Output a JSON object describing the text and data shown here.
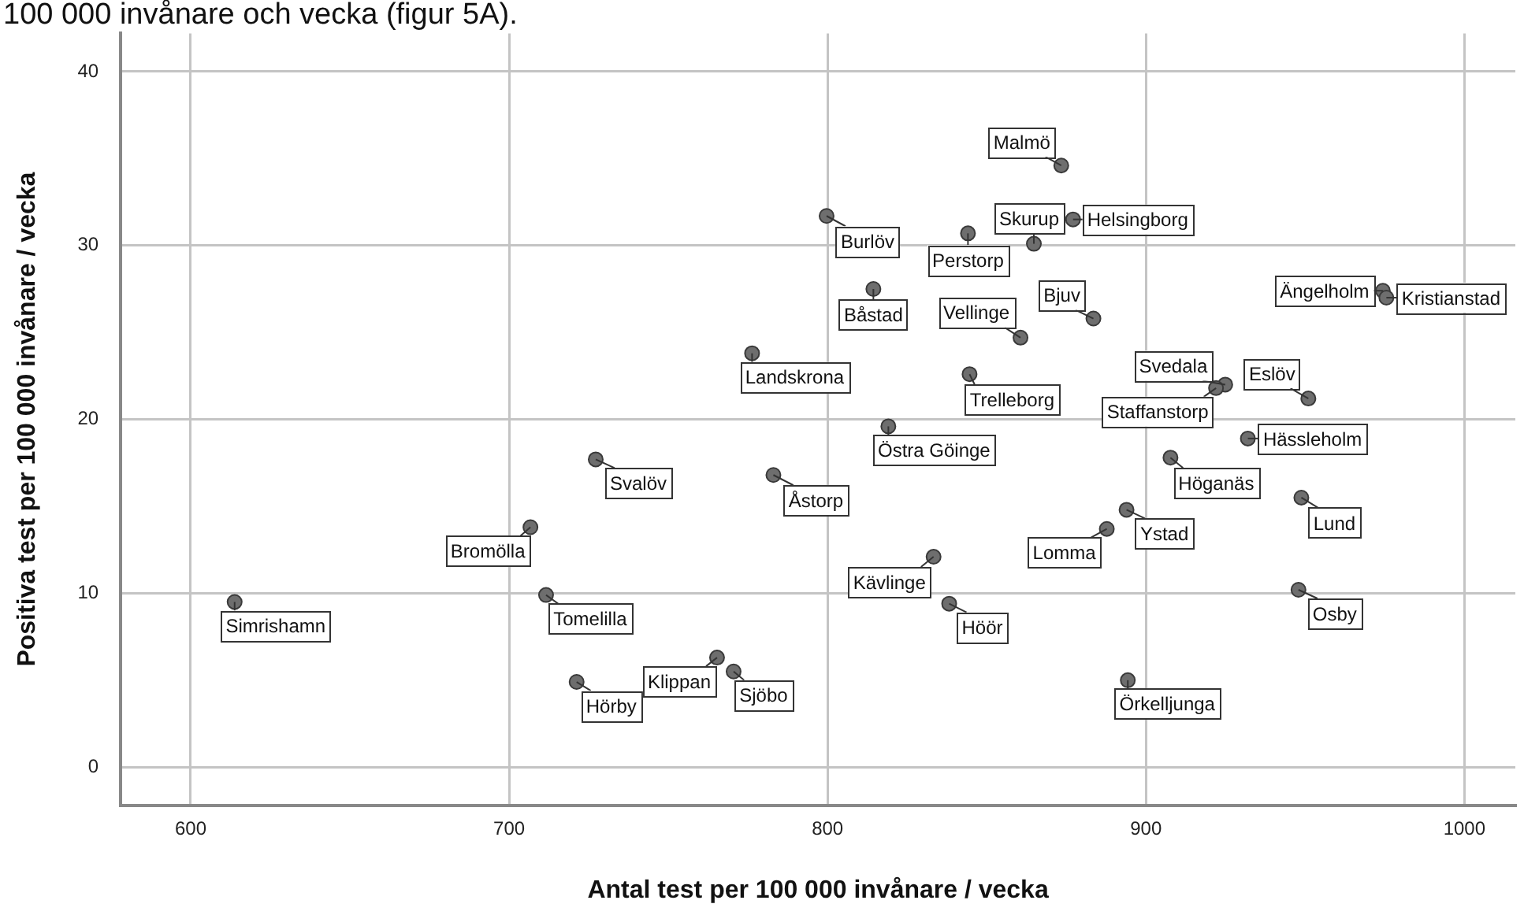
{
  "chart_data": {
    "type": "scatter",
    "xlabel": "Antal test per 100 000 invånare / vecka",
    "ylabel": "Positiva test per 100 000 invånare / vecka",
    "annotations": [
      "100 000 invånare och vecka (figur 5A)."
    ],
    "x": [
      613.8,
      706.7,
      727.2,
      711.6,
      721.2,
      765.3,
      770.5,
      783.0,
      776.3,
      799.7,
      814.4,
      819.1,
      844.1,
      864.8,
      877.1,
      873.4,
      844.6,
      860.6,
      883.5,
      924.9,
      922.0,
      951.0,
      932.0,
      974.4,
      975.5,
      907.7,
      948.8,
      947.9,
      893.9,
      887.7,
      833.3,
      838.2,
      894.3
    ],
    "values": [
      9.5,
      13.8,
      17.7,
      9.9,
      4.9,
      6.3,
      5.5,
      16.8,
      23.8,
      31.7,
      27.5,
      19.6,
      30.7,
      30.1,
      31.5,
      34.6,
      22.6,
      24.7,
      25.8,
      22.0,
      21.8,
      21.2,
      18.9,
      27.4,
      27.0,
      17.8,
      15.5,
      10.2,
      14.8,
      13.7,
      12.1,
      9.4,
      5.0
    ],
    "value_labels": [
      "Simrishamn",
      "Bromölla",
      "Svalöv",
      "Tomelilla",
      "Hörby",
      "Klippan",
      "Sjöbo",
      "Åstorp",
      "Landskrona",
      "Burlöv",
      "Båstad",
      "Östra Göinge",
      "Perstorp",
      "Skurup",
      "Helsingborg",
      "Malmö",
      "Trelleborg",
      "Vellinge",
      "Bjuv",
      "Svedala",
      "Staffanstorp",
      "Eslöv",
      "Hässleholm",
      "Ängelholm",
      "Kristianstad",
      "Höganäs",
      "Lund",
      "Osby",
      "Ystad",
      "Lomma",
      "Kävlinge",
      "Höör",
      "Örkelljunga"
    ],
    "color": "#6e6e6e",
    "marker": "circle",
    "xlim": [
      578,
      1016
    ],
    "xticks": [
      600,
      700,
      800,
      900,
      1000
    ],
    "ylim": [
      -2.2,
      42.2
    ],
    "yticks": [
      0,
      10,
      20,
      30,
      40
    ],
    "grid": true,
    "legend": false
  }
}
